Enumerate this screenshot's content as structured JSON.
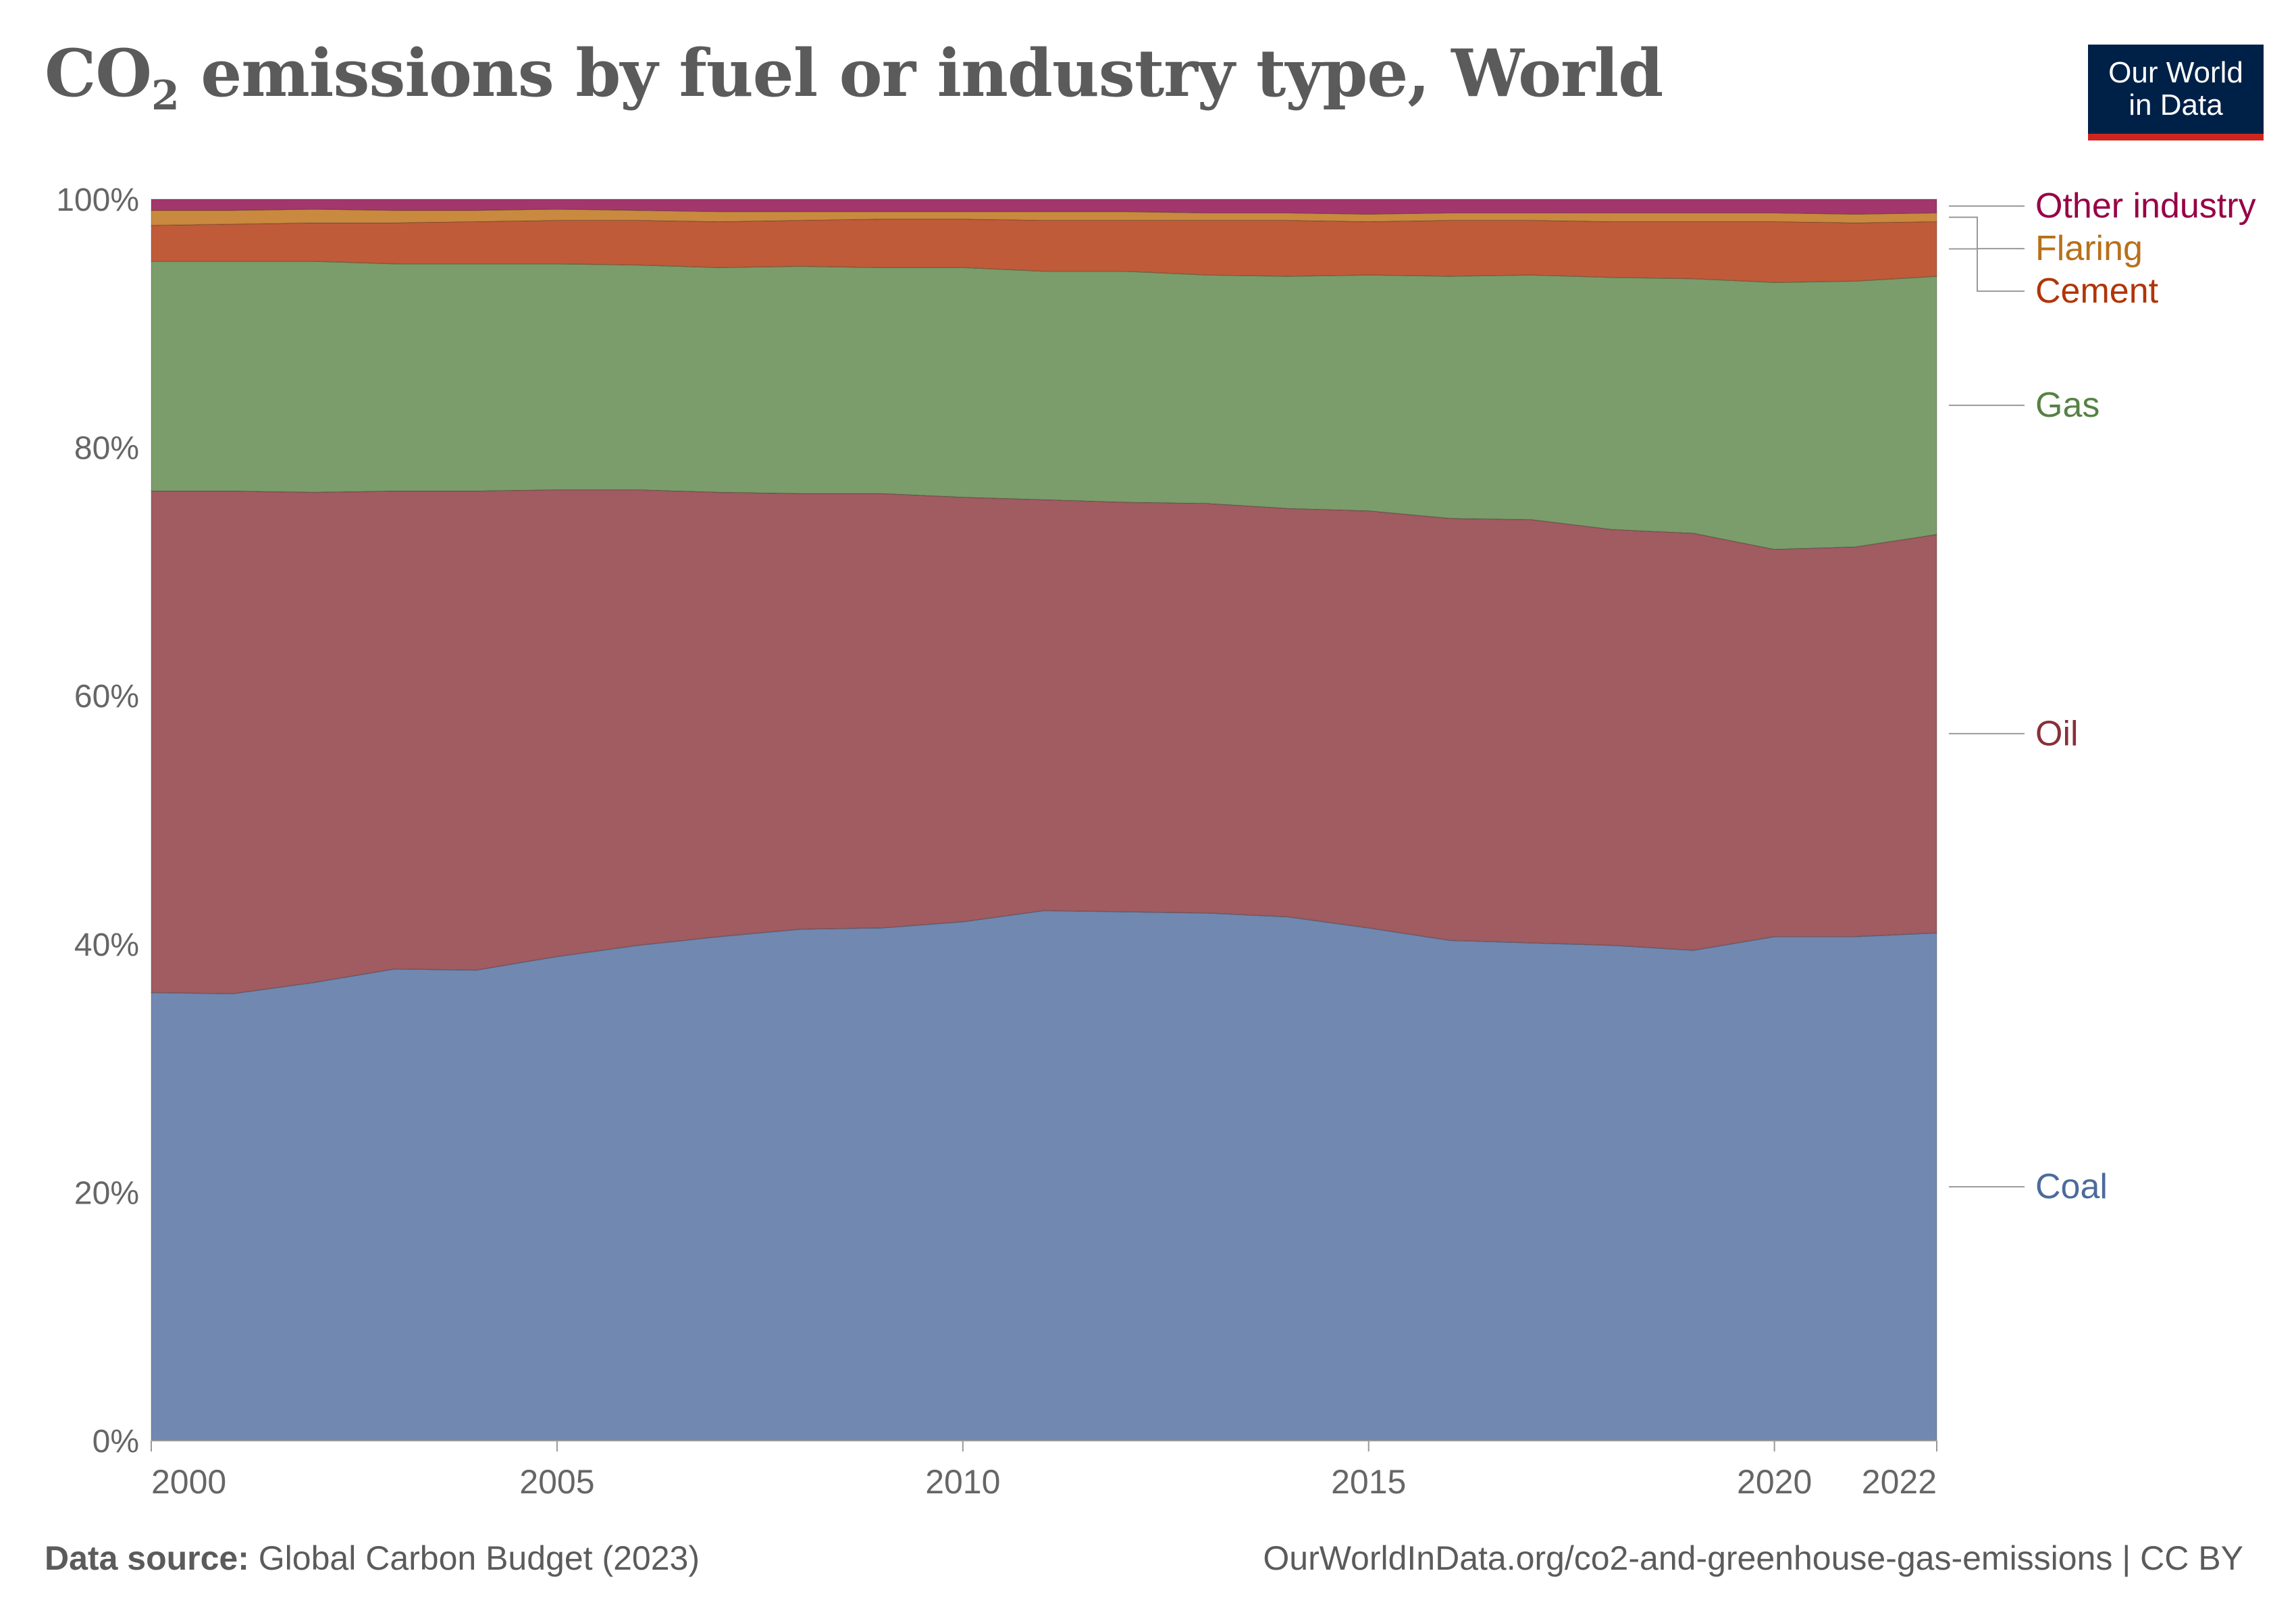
{
  "header": {
    "title_prefix": "CO",
    "title_sub": "2",
    "title_rest": " emissions by fuel or industry type, World",
    "logo_line1": "Our World",
    "logo_line2": "in Data"
  },
  "footer": {
    "source_label": "Data source:",
    "source_text": " Global Carbon Budget (2023)",
    "url_text": "OurWorldInData.org/co2-and-greenhouse-gas-emissions | CC BY"
  },
  "colors": {
    "Coal": "#7188b1",
    "Oil": "#a05c60",
    "Gas": "#7b9d6b",
    "Cement": "#c05b39",
    "Flaring": "#c98a3f",
    "Other industry": "#a4366e",
    "label_Coal": "#4c6a9c",
    "label_Oil": "#883039",
    "label_Gas": "#578145",
    "label_Cement": "#b13507",
    "label_Flaring": "#b8701a",
    "label_Other industry": "#970046"
  },
  "chart_data": {
    "type": "area",
    "stacked": true,
    "percent": true,
    "title": "CO2 emissions by fuel or industry type, World",
    "xlabel": "",
    "ylabel": "",
    "x": [
      2000,
      2001,
      2002,
      2003,
      2004,
      2005,
      2006,
      2007,
      2008,
      2009,
      2010,
      2011,
      2012,
      2013,
      2014,
      2015,
      2016,
      2017,
      2018,
      2019,
      2020,
      2021,
      2022
    ],
    "x_ticks": [
      2000,
      2005,
      2010,
      2015,
      2020,
      2022
    ],
    "y_ticks": [
      "0%",
      "20%",
      "40%",
      "60%",
      "80%",
      "100%"
    ],
    "ylim": [
      0,
      100
    ],
    "legend_position": "right",
    "series": [
      {
        "name": "Coal",
        "values": [
          36.1,
          36.0,
          36.9,
          38.0,
          37.9,
          39.0,
          39.9,
          40.6,
          41.2,
          41.3,
          41.8,
          42.7,
          42.6,
          42.5,
          42.2,
          41.3,
          40.3,
          40.1,
          39.9,
          39.5,
          40.6,
          40.6,
          40.9
        ]
      },
      {
        "name": "Oil",
        "values": [
          40.4,
          40.5,
          39.5,
          38.5,
          38.6,
          37.6,
          36.7,
          35.8,
          35.1,
          35.0,
          34.2,
          33.1,
          33.0,
          33.0,
          32.9,
          33.6,
          34.0,
          34.1,
          33.5,
          33.6,
          31.2,
          31.4,
          32.1
        ]
      },
      {
        "name": "Gas",
        "values": [
          18.5,
          18.5,
          18.6,
          18.3,
          18.3,
          18.2,
          18.1,
          18.1,
          18.3,
          18.2,
          18.5,
          18.4,
          18.6,
          18.4,
          18.7,
          19.0,
          19.5,
          19.7,
          20.3,
          20.5,
          21.5,
          21.4,
          20.8
        ]
      },
      {
        "name": "Cement",
        "values": [
          2.9,
          3.0,
          3.1,
          3.3,
          3.4,
          3.5,
          3.6,
          3.7,
          3.7,
          3.9,
          3.9,
          4.1,
          4.1,
          4.4,
          4.5,
          4.3,
          4.5,
          4.4,
          4.5,
          4.6,
          4.9,
          4.7,
          4.4
        ]
      },
      {
        "name": "Flaring",
        "values": [
          1.2,
          1.1,
          1.1,
          1.0,
          0.9,
          0.9,
          0.8,
          0.8,
          0.7,
          0.6,
          0.6,
          0.7,
          0.7,
          0.6,
          0.6,
          0.6,
          0.6,
          0.6,
          0.7,
          0.7,
          0.7,
          0.7,
          0.7
        ]
      },
      {
        "name": "Other industry",
        "values": [
          0.9,
          0.9,
          0.8,
          0.9,
          0.9,
          0.8,
          0.9,
          1.0,
          1.0,
          1.0,
          1.0,
          1.0,
          1.0,
          1.1,
          1.1,
          1.2,
          1.1,
          1.1,
          1.1,
          1.1,
          1.1,
          1.2,
          1.1
        ]
      }
    ]
  }
}
